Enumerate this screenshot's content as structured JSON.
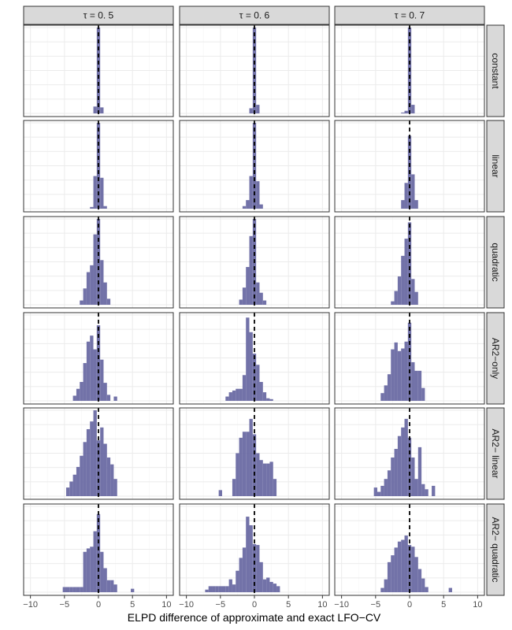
{
  "chart_data": {
    "type": "histogram-facet",
    "xlabel": "ELPD difference of approximate and exact LFO−CV",
    "xlim": [
      -11,
      11
    ],
    "x_ticks": [
      -10,
      -5,
      0,
      5,
      10
    ],
    "x_tick_labels": [
      "−10",
      "−5",
      "0",
      "5",
      "10"
    ],
    "bin_width": 0.5,
    "reference_line_x": 0,
    "grid": true,
    "column_labels": [
      "τ = 0. 5",
      "τ = 0. 6",
      "τ = 0. 7"
    ],
    "row_labels": [
      "constant",
      "linear",
      "quadratic",
      "AR2−only",
      "AR2− linear",
      "AR2− quadratic"
    ],
    "panels": [
      {
        "row": "constant",
        "column": "τ = 0. 5",
        "bins": [
          [
            -0.5,
            8
          ],
          [
            0,
            100
          ],
          [
            0.5,
            7
          ]
        ]
      },
      {
        "row": "constant",
        "column": "τ = 0. 6",
        "bins": [
          [
            -0.5,
            6
          ],
          [
            0,
            100
          ],
          [
            0.5,
            10
          ]
        ]
      },
      {
        "row": "constant",
        "column": "τ = 0. 7",
        "bins": [
          [
            -1,
            1
          ],
          [
            -0.5,
            3
          ],
          [
            0,
            100
          ],
          [
            0.5,
            10
          ]
        ]
      },
      {
        "row": "linear",
        "column": "τ = 0. 5",
        "bins": [
          [
            -1,
            2
          ],
          [
            -0.5,
            38
          ],
          [
            0,
            100
          ],
          [
            0.5,
            36
          ],
          [
            1,
            3
          ]
        ]
      },
      {
        "row": "linear",
        "column": "τ = 0. 6",
        "bins": [
          [
            -1.5,
            3
          ],
          [
            -1,
            10
          ],
          [
            -0.5,
            38
          ],
          [
            0,
            100
          ],
          [
            0.5,
            32
          ],
          [
            1,
            5
          ]
        ]
      },
      {
        "row": "linear",
        "column": "τ = 0. 7",
        "bins": [
          [
            -1,
            10
          ],
          [
            -0.5,
            30
          ],
          [
            0,
            85
          ],
          [
            0.5,
            40
          ],
          [
            1,
            10
          ]
        ]
      },
      {
        "row": "quadratic",
        "column": "τ = 0. 5",
        "bins": [
          [
            -2.5,
            5
          ],
          [
            -2,
            19
          ],
          [
            -1.5,
            38
          ],
          [
            -1,
            46
          ],
          [
            -0.5,
            82
          ],
          [
            0,
            100
          ],
          [
            0.5,
            52
          ],
          [
            1,
            26
          ],
          [
            1.5,
            7
          ]
        ]
      },
      {
        "row": "quadratic",
        "column": "τ = 0. 6",
        "bins": [
          [
            -2,
            6
          ],
          [
            -1.5,
            20
          ],
          [
            -1,
            44
          ],
          [
            -0.5,
            80
          ],
          [
            0,
            100
          ],
          [
            0.5,
            26
          ],
          [
            1,
            14
          ],
          [
            1.5,
            5
          ]
        ]
      },
      {
        "row": "quadratic",
        "column": "τ = 0. 7",
        "bins": [
          [
            -2.5,
            4
          ],
          [
            -2,
            16
          ],
          [
            -1.5,
            33
          ],
          [
            -1,
            57
          ],
          [
            -0.5,
            77
          ],
          [
            0,
            96
          ],
          [
            0.5,
            30
          ],
          [
            1,
            15
          ]
        ]
      },
      {
        "row": "AR2−only",
        "column": "τ = 0. 5",
        "bins": [
          [
            -3.5,
            6
          ],
          [
            -3,
            14
          ],
          [
            -2.5,
            22
          ],
          [
            -2,
            44
          ],
          [
            -1.5,
            69
          ],
          [
            -1,
            76
          ],
          [
            -0.5,
            60
          ],
          [
            0,
            88
          ],
          [
            0.5,
            48
          ],
          [
            1,
            21
          ],
          [
            1.5,
            7
          ],
          [
            2.5,
            5
          ]
        ]
      },
      {
        "row": "AR2−only",
        "column": "τ = 0. 6",
        "bins": [
          [
            -4,
            5
          ],
          [
            -3.5,
            10
          ],
          [
            -3,
            12
          ],
          [
            -2.5,
            14
          ],
          [
            -2,
            14
          ],
          [
            -1.5,
            30
          ],
          [
            -1,
            97
          ],
          [
            -0.5,
            80
          ],
          [
            0,
            55
          ],
          [
            0.5,
            42
          ],
          [
            1,
            22
          ],
          [
            1.5,
            10
          ],
          [
            2,
            3
          ],
          [
            2.5,
            2
          ]
        ]
      },
      {
        "row": "AR2−only",
        "column": "τ = 0. 7",
        "bins": [
          [
            -4,
            9
          ],
          [
            -3.5,
            18
          ],
          [
            -3,
            31
          ],
          [
            -2.5,
            60
          ],
          [
            -2,
            68
          ],
          [
            -1.5,
            58
          ],
          [
            -1,
            61
          ],
          [
            -0.5,
            69
          ],
          [
            0,
            91
          ],
          [
            0.5,
            45
          ],
          [
            1,
            35
          ],
          [
            1.5,
            35
          ],
          [
            2,
            15
          ]
        ]
      },
      {
        "row": "AR2− linear",
        "column": "τ = 0. 5",
        "bins": [
          [
            -4.5,
            10
          ],
          [
            -4,
            17
          ],
          [
            -3.5,
            25
          ],
          [
            -3,
            34
          ],
          [
            -2.5,
            47
          ],
          [
            -2,
            63
          ],
          [
            -1.5,
            78
          ],
          [
            -1,
            87
          ],
          [
            -0.5,
            100
          ],
          [
            0,
            65
          ],
          [
            0.5,
            80
          ],
          [
            1,
            61
          ],
          [
            1.5,
            45
          ],
          [
            2,
            37
          ],
          [
            2.5,
            20
          ]
        ]
      },
      {
        "row": "AR2− linear",
        "column": "τ = 0. 6",
        "bins": [
          [
            -5,
            7
          ],
          [
            -3,
            20
          ],
          [
            -2.5,
            50
          ],
          [
            -2,
            68
          ],
          [
            -1.5,
            75
          ],
          [
            -1,
            75
          ],
          [
            -0.5,
            90
          ],
          [
            0,
            72
          ],
          [
            0.5,
            50
          ],
          [
            1,
            42
          ],
          [
            1.5,
            38
          ],
          [
            2,
            38
          ],
          [
            2.5,
            40
          ],
          [
            3,
            20
          ]
        ]
      },
      {
        "row": "AR2− linear",
        "column": "τ = 0. 7",
        "bins": [
          [
            -5,
            10
          ],
          [
            -4.5,
            5
          ],
          [
            -4,
            12
          ],
          [
            -3.5,
            20
          ],
          [
            -3,
            30
          ],
          [
            -2.5,
            45
          ],
          [
            -2,
            55
          ],
          [
            -1.5,
            70
          ],
          [
            -1,
            80
          ],
          [
            -0.5,
            90
          ],
          [
            0,
            68
          ],
          [
            0.5,
            45
          ],
          [
            1,
            20
          ],
          [
            1.5,
            57
          ],
          [
            2,
            14
          ],
          [
            2.5,
            8
          ],
          [
            3.5,
            12
          ]
        ]
      },
      {
        "row": "AR2− quadratic",
        "column": "τ = 0. 5",
        "bins": [
          [
            -5,
            6
          ],
          [
            -4.5,
            6
          ],
          [
            -4,
            6
          ],
          [
            -3.5,
            6
          ],
          [
            -3,
            6
          ],
          [
            -2.5,
            6
          ],
          [
            -2,
            47
          ],
          [
            -1.5,
            51
          ],
          [
            -1,
            53
          ],
          [
            -0.5,
            71
          ],
          [
            0,
            91
          ],
          [
            0.5,
            47
          ],
          [
            1,
            28
          ],
          [
            1.5,
            14
          ],
          [
            2,
            14
          ],
          [
            2.5,
            9
          ],
          [
            5,
            4
          ]
        ]
      },
      {
        "row": "AR2− quadratic",
        "column": "τ = 0. 6",
        "bins": [
          [
            -7,
            3
          ],
          [
            -6.5,
            7
          ],
          [
            -6,
            7
          ],
          [
            -5.5,
            7
          ],
          [
            -5,
            7
          ],
          [
            -4.5,
            7
          ],
          [
            -4,
            7
          ],
          [
            -3.5,
            15
          ],
          [
            -3,
            9
          ],
          [
            -2.5,
            25
          ],
          [
            -2,
            40
          ],
          [
            -1.5,
            52
          ],
          [
            -1,
            88
          ],
          [
            -0.5,
            78
          ],
          [
            0,
            56
          ],
          [
            0.5,
            55
          ],
          [
            1,
            35
          ],
          [
            1.5,
            15
          ],
          [
            2,
            17
          ],
          [
            2.5,
            12
          ],
          [
            3,
            10
          ],
          [
            3.5,
            7
          ]
        ]
      },
      {
        "row": "AR2− quadratic",
        "column": "τ = 0. 7",
        "bins": [
          [
            -4,
            5
          ],
          [
            -3.5,
            15
          ],
          [
            -3,
            35
          ],
          [
            -2.5,
            43
          ],
          [
            -2,
            52
          ],
          [
            -1.5,
            59
          ],
          [
            -1,
            61
          ],
          [
            -0.5,
            66
          ],
          [
            0,
            55
          ],
          [
            0.5,
            53
          ],
          [
            1,
            41
          ],
          [
            1.5,
            27
          ],
          [
            2,
            16
          ],
          [
            2.5,
            6
          ],
          [
            6,
            5
          ]
        ]
      }
    ]
  },
  "style": {
    "bar_fill": "#6a6aa3",
    "bar_opacity": "0.95",
    "strip_fill": "#d9d9d9",
    "strip_border": "#333333",
    "panel_border": "#333333",
    "grid_major": "#ebebeb",
    "grid_minor": "#f5f5f5",
    "ref_line": "#000000"
  }
}
